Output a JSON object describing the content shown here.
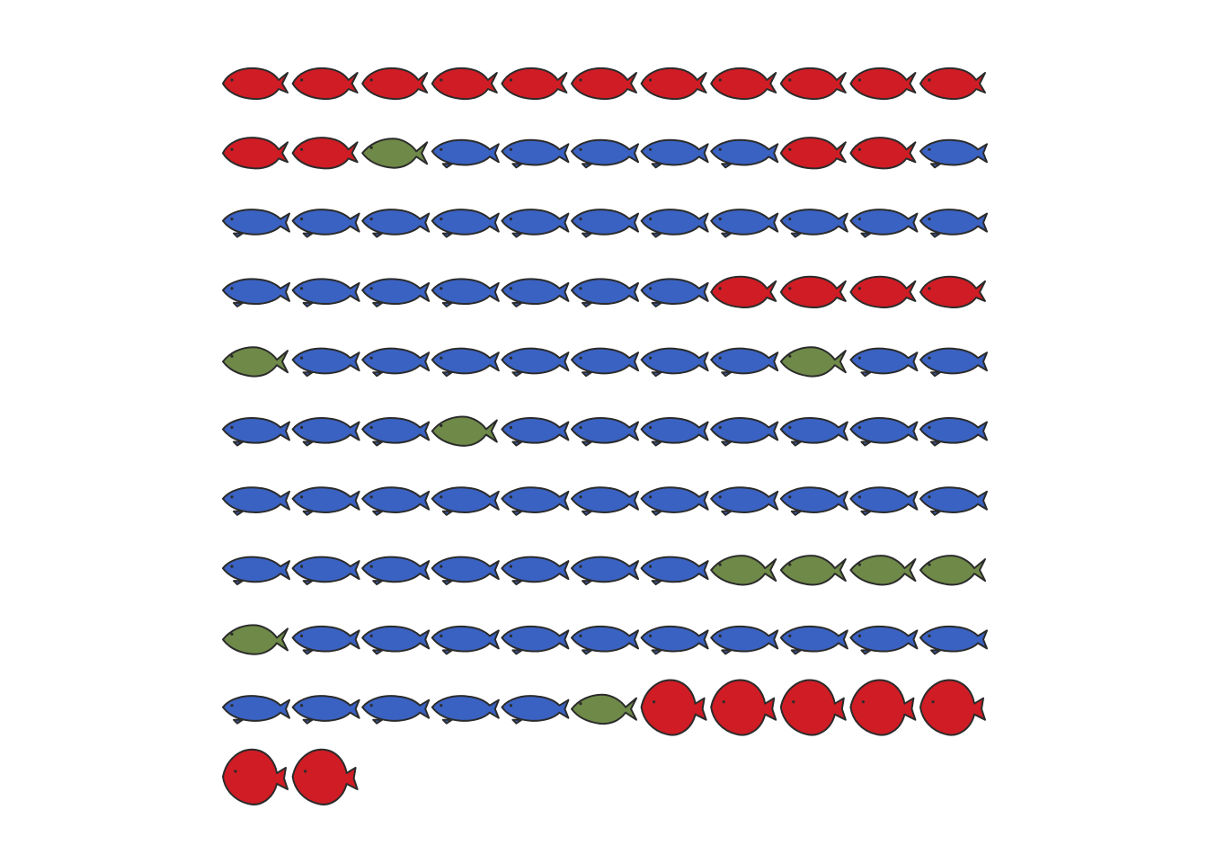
{
  "chart_data": {
    "type": "pictogram",
    "rows": 11,
    "columns": 11,
    "title": "",
    "categories": [
      "red",
      "blue",
      "green"
    ],
    "colors": {
      "red": "#d01c24",
      "blue": "#3a62c2",
      "green": "#6f8a48"
    },
    "icon": "fish-icon",
    "cells": [
      "red",
      "red",
      "red",
      "red",
      "red",
      "red",
      "red",
      "red",
      "red",
      "red",
      "red",
      "red",
      "red",
      "green",
      "blue",
      "blue",
      "blue",
      "blue",
      "blue",
      "red",
      "red",
      "blue",
      "blue",
      "blue",
      "blue",
      "blue",
      "blue",
      "blue",
      "blue",
      "blue",
      "blue",
      "blue",
      "blue",
      "blue",
      "blue",
      "blue",
      "blue",
      "blue",
      "blue",
      "blue",
      "red",
      "red",
      "red",
      "red",
      "green",
      "blue",
      "blue",
      "blue",
      "blue",
      "blue",
      "blue",
      "blue",
      "green",
      "blue",
      "blue",
      "blue",
      "blue",
      "blue",
      "green",
      "blue",
      "blue",
      "blue",
      "blue",
      "blue",
      "blue",
      "blue",
      "blue",
      "blue",
      "blue",
      "blue",
      "blue",
      "blue",
      "blue",
      "blue",
      "blue",
      "blue",
      "blue",
      "blue",
      "blue",
      "blue",
      "blue",
      "blue",
      "blue",
      "blue",
      "green",
      "green",
      "green",
      "green",
      "green",
      "blue",
      "blue",
      "blue",
      "blue",
      "blue",
      "blue",
      "blue",
      "blue",
      "blue",
      "blue",
      "blue",
      "blue",
      "blue",
      "blue",
      "blue",
      "green",
      "red",
      "red",
      "red",
      "red",
      "red",
      "red",
      "red"
    ],
    "shapes": [
      "a",
      "a",
      "a",
      "a",
      "a",
      "a",
      "a",
      "a",
      "a",
      "a",
      "a",
      "a",
      "a",
      "g",
      "b",
      "b",
      "b",
      "b",
      "b",
      "a",
      "a",
      "b",
      "b",
      "b",
      "b",
      "b",
      "b",
      "b",
      "b",
      "b",
      "b",
      "b",
      "b",
      "b",
      "b",
      "b",
      "b",
      "b",
      "b",
      "b",
      "a",
      "a",
      "a",
      "a",
      "g",
      "b",
      "b",
      "b",
      "b",
      "b",
      "b",
      "b",
      "g",
      "b",
      "b",
      "b",
      "b",
      "b",
      "g",
      "b",
      "b",
      "b",
      "b",
      "b",
      "b",
      "b",
      "b",
      "b",
      "b",
      "b",
      "b",
      "b",
      "b",
      "b",
      "b",
      "b",
      "b",
      "b",
      "b",
      "b",
      "b",
      "b",
      "b",
      "b",
      "g",
      "g",
      "g",
      "g",
      "g",
      "b",
      "b",
      "b",
      "b",
      "b",
      "b",
      "b",
      "b",
      "b",
      "b",
      "b",
      "b",
      "b",
      "b",
      "b",
      "g",
      "d",
      "d",
      "d",
      "d",
      "d",
      "d",
      "d"
    ]
  }
}
